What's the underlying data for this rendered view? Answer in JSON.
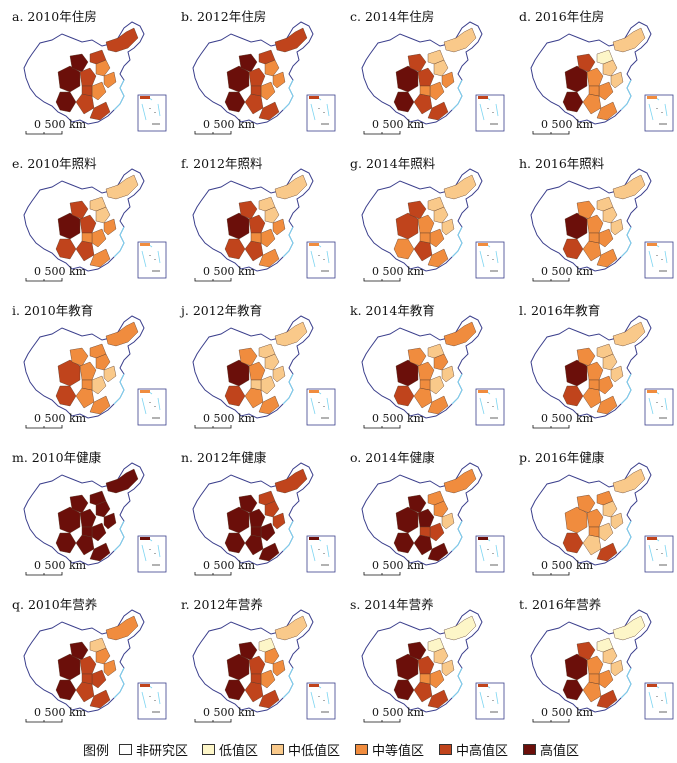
{
  "panels": [
    {
      "title": "a. 2010年住房",
      "levels": [
        5,
        5,
        5,
        4,
        4,
        3,
        3,
        4,
        4,
        3,
        4,
        4
      ]
    },
    {
      "title": "b. 2012年住房",
      "levels": [
        5,
        5,
        5,
        4,
        4,
        3,
        3,
        4,
        4,
        3,
        4,
        4
      ]
    },
    {
      "title": "c. 2014年住房",
      "levels": [
        5,
        5,
        4,
        4,
        4,
        3,
        2,
        2,
        4,
        3,
        3,
        2
      ]
    },
    {
      "title": "d. 2016年住房",
      "levels": [
        5,
        5,
        4,
        3,
        3,
        3,
        2,
        2,
        3,
        2,
        3,
        1
      ]
    },
    {
      "title": "e. 2010年照料",
      "levels": [
        5,
        4,
        4,
        4,
        4,
        3,
        2,
        2,
        3,
        3,
        3,
        2
      ]
    },
    {
      "title": "f. 2012年照料",
      "levels": [
        5,
        4,
        4,
        4,
        4,
        3,
        2,
        2,
        3,
        3,
        3,
        2
      ]
    },
    {
      "title": "g. 2014年照料",
      "levels": [
        4,
        3,
        4,
        3,
        4,
        3,
        2,
        2,
        3,
        2,
        3,
        2
      ]
    },
    {
      "title": "h. 2016年照料",
      "levels": [
        5,
        4,
        3,
        3,
        3,
        3,
        2,
        2,
        3,
        2,
        3,
        2
      ]
    },
    {
      "title": "i. 2010年教育",
      "levels": [
        4,
        4,
        3,
        3,
        3,
        2,
        3,
        3,
        3,
        2,
        3,
        3
      ]
    },
    {
      "title": "j. 2012年教育",
      "levels": [
        5,
        4,
        3,
        3,
        3,
        2,
        2,
        2,
        3,
        2,
        2,
        2
      ]
    },
    {
      "title": "k. 2014年教育",
      "levels": [
        5,
        4,
        3,
        3,
        3,
        2,
        3,
        3,
        3,
        2,
        3,
        2
      ]
    },
    {
      "title": "l. 2016年教育",
      "levels": [
        5,
        4,
        3,
        3,
        3,
        3,
        2,
        2,
        3,
        2,
        3,
        2
      ]
    },
    {
      "title": "m. 2010年健康",
      "levels": [
        5,
        5,
        5,
        5,
        5,
        5,
        5,
        5,
        5,
        5,
        5,
        5
      ]
    },
    {
      "title": "n. 2012年健康",
      "levels": [
        5,
        5,
        5,
        5,
        5,
        5,
        4,
        4,
        5,
        4,
        5,
        4
      ]
    },
    {
      "title": "o. 2014年健康",
      "levels": [
        5,
        5,
        5,
        5,
        5,
        4,
        3,
        3,
        5,
        2,
        4,
        3
      ]
    },
    {
      "title": "p. 2016年健康",
      "levels": [
        3,
        4,
        3,
        3,
        2,
        2,
        2,
        2,
        4,
        2,
        3,
        3
      ]
    },
    {
      "title": "q. 2010年营养",
      "levels": [
        5,
        5,
        5,
        4,
        4,
        4,
        3,
        3,
        4,
        3,
        4,
        2
      ]
    },
    {
      "title": "r. 2012年营养",
      "levels": [
        5,
        5,
        5,
        4,
        4,
        3,
        3,
        2,
        4,
        3,
        4,
        1
      ]
    },
    {
      "title": "s. 2014年营养",
      "levels": [
        5,
        5,
        5,
        4,
        4,
        3,
        2,
        1,
        4,
        2,
        3,
        1
      ]
    },
    {
      "title": "t. 2016年营养",
      "levels": [
        5,
        5,
        4,
        3,
        3,
        3,
        2,
        1,
        4,
        2,
        3,
        1
      ]
    }
  ],
  "scale_bar_label": "0  500 km",
  "legend": {
    "title": "图例",
    "items": [
      {
        "label": "非研究区",
        "color": "#ffffff"
      },
      {
        "label": "低值区",
        "color": "#fdf6c8"
      },
      {
        "label": "中低值区",
        "color": "#f9c98a"
      },
      {
        "label": "中等值区",
        "color": "#f08c3e"
      },
      {
        "label": "中高值区",
        "color": "#c0441c"
      },
      {
        "label": "高值区",
        "color": "#6b0f0a"
      }
    ]
  },
  "colors": {
    "level_0": "#ffffff",
    "level_1": "#fdf6c8",
    "level_2": "#f9c98a",
    "level_3": "#f08c3e",
    "level_4": "#c0441c",
    "level_5": "#6b0f0a",
    "border": "#3b3f8c",
    "sea": "#7fd6f2"
  }
}
